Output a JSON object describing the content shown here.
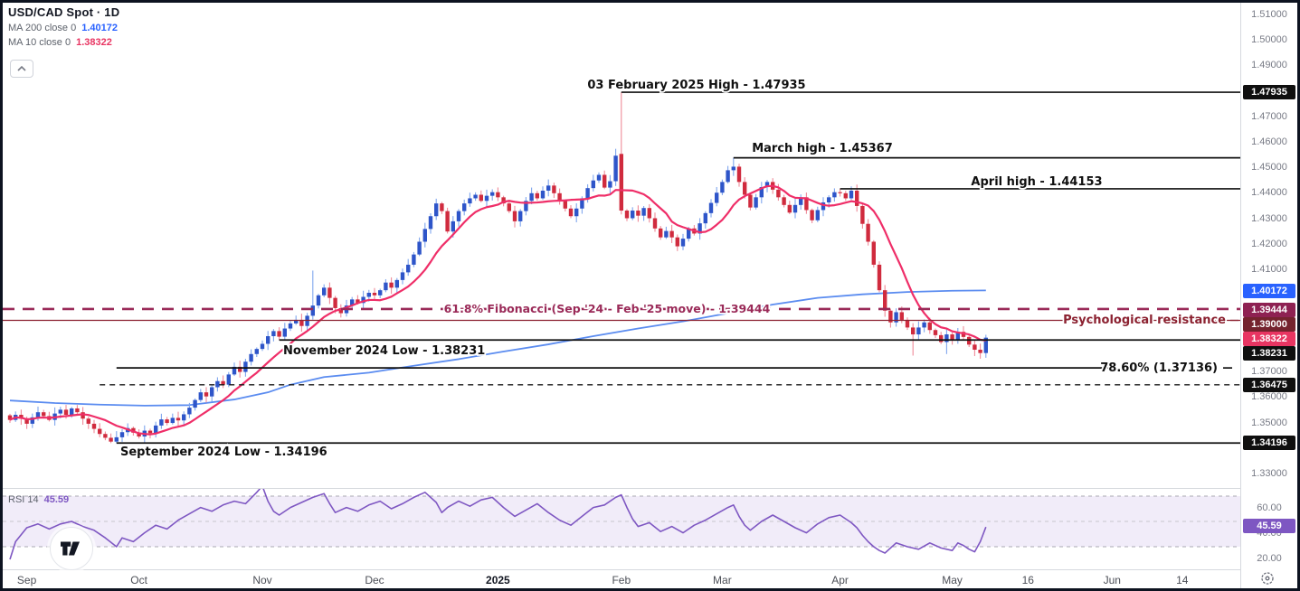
{
  "legend": {
    "symbol": "USD/CAD Spot · 1D",
    "ma200_label": "MA 200 close 0",
    "ma200_value": "1.40172",
    "ma200_color": "#2962ff",
    "ma10_label": "MA 10 close 0",
    "ma10_value": "1.38322",
    "ma10_color": "#e83562"
  },
  "rsi_legend": {
    "label": "RSI 14",
    "value": "45.59",
    "value_color": "#7e57c2"
  },
  "chart_data": {
    "type": "candlestick",
    "title": "USD/CAD Spot",
    "timeframe": "1D",
    "price_axis": {
      "min": 1.33,
      "max": 1.51,
      "ticks": [
        "1.51000",
        "1.50000",
        "1.49000",
        "1.47000",
        "1.46000",
        "1.45000",
        "1.44000",
        "1.43000",
        "1.42000",
        "1.41000",
        "1.37000",
        "1.36000",
        "1.35000",
        "1.33000"
      ],
      "badges": [
        {
          "text": "1.47935",
          "price": 1.47935,
          "bg": "#0f0f0f"
        },
        {
          "text": "1.40172",
          "price": 1.40172,
          "bg": "#2962ff"
        },
        {
          "text": "1.39444",
          "price": 1.39444,
          "bg": "#8e2152"
        },
        {
          "text": "1.39000",
          "price": 1.39,
          "bg": "#74232e"
        },
        {
          "text": "1.38322",
          "price": 1.38322,
          "bg": "#e83562"
        },
        {
          "text": "1.38231",
          "price": 1.38231,
          "bg": "#0f0f0f"
        },
        {
          "text": "1.36475",
          "price": 1.36475,
          "bg": "#0f0f0f"
        },
        {
          "text": "1.34196",
          "price": 1.34196,
          "bg": "#0f0f0f"
        }
      ]
    },
    "time_ticks": [
      {
        "label": "Sep",
        "i": 3
      },
      {
        "label": "Oct",
        "i": 23
      },
      {
        "label": "Nov",
        "i": 45
      },
      {
        "label": "Dec",
        "i": 65
      },
      {
        "label": "2025",
        "i": 87,
        "year": true
      },
      {
        "label": "Feb",
        "i": 109
      },
      {
        "label": "Mar",
        "i": 127
      },
      {
        "label": "Apr",
        "i": 148
      },
      {
        "label": "May",
        "i": 168
      },
      {
        "label": "16",
        "i": 181.5
      },
      {
        "label": "Jun",
        "i": 196.5
      },
      {
        "label": "14",
        "i": 209
      }
    ],
    "candles": {
      "first_open": 1.3528,
      "up_color": "#2e55c9",
      "up_wick": "#7fa6ee",
      "down_color": "#d02b3e",
      "down_wick": "#ef8b99",
      "closes": [
        1.351,
        1.353,
        1.3515,
        1.3495,
        1.352,
        1.354,
        1.3525,
        1.351,
        1.3535,
        1.355,
        1.353,
        1.3555,
        1.354,
        1.3515,
        1.3495,
        1.3475,
        1.3455,
        1.344,
        1.3425,
        1.3442,
        1.3462,
        1.3478,
        1.346,
        1.3445,
        1.3468,
        1.3458,
        1.3488,
        1.3512,
        1.3498,
        1.3518,
        1.3508,
        1.3532,
        1.3558,
        1.3588,
        1.3618,
        1.3602,
        1.3638,
        1.3662,
        1.3648,
        1.3688,
        1.3718,
        1.3698,
        1.3738,
        1.3768,
        1.3788,
        1.3808,
        1.3838,
        1.3858,
        1.3836,
        1.3868,
        1.3888,
        1.3902,
        1.3878,
        1.3918,
        1.3958,
        1.3998,
        1.4028,
        1.3988,
        1.3948,
        1.3928,
        1.3958,
        1.3982,
        1.3968,
        1.3992,
        1.4008,
        1.3998,
        1.4018,
        1.4048,
        1.4028,
        1.4058,
        1.4088,
        1.4118,
        1.4158,
        1.4208,
        1.4258,
        1.4308,
        1.4358,
        1.4328,
        1.4248,
        1.4288,
        1.4328,
        1.4358,
        1.4378,
        1.4392,
        1.4368,
        1.4388,
        1.4402,
        1.4382,
        1.4358,
        1.4328,
        1.4288,
        1.4328,
        1.4368,
        1.4398,
        1.4378,
        1.4408,
        1.4428,
        1.4398,
        1.4368,
        1.4338,
        1.4308,
        1.4338,
        1.4378,
        1.4418,
        1.4448,
        1.447,
        1.442,
        1.4445,
        1.4545,
        1.433,
        1.43,
        1.433,
        1.431,
        1.434,
        1.43,
        1.426,
        1.4225,
        1.425,
        1.4225,
        1.419,
        1.422,
        1.426,
        1.424,
        1.428,
        1.432,
        1.436,
        1.44,
        1.4442,
        1.4488,
        1.4502,
        1.4442,
        1.4392,
        1.4342,
        1.4382,
        1.4422,
        1.4442,
        1.4412,
        1.4382,
        1.4352,
        1.4322,
        1.4352,
        1.4382,
        1.4332,
        1.4292,
        1.4332,
        1.4362,
        1.4382,
        1.4402,
        1.4398,
        1.4378,
        1.4408,
        1.4348,
        1.4278,
        1.4208,
        1.4118,
        1.4018,
        1.3938,
        1.3892,
        1.3932,
        1.3902,
        1.3872,
        1.3845,
        1.3872,
        1.3892,
        1.3862,
        1.3842,
        1.3815,
        1.3845,
        1.3825,
        1.3855,
        1.3835,
        1.3805,
        1.3785,
        1.3772,
        1.38322
      ],
      "overrides": {
        "19": {
          "l": 1.34196
        },
        "48": {
          "l": 1.38231
        },
        "54": {
          "h": 1.4095
        },
        "108": {
          "h": 1.4572
        },
        "109": {
          "o": 1.4552,
          "h": 1.47935
        },
        "129": {
          "h": 1.45367
        },
        "148": {
          "h": 1.44153
        },
        "161": {
          "l": 1.3762
        },
        "167": {
          "l": 1.3768
        },
        "172": {
          "l": 1.376
        }
      }
    },
    "ma200": {
      "color": "#5b8cf0",
      "points": [
        [
          0,
          1.3586
        ],
        [
          8,
          1.3576
        ],
        [
          16,
          1.357
        ],
        [
          24,
          1.3566
        ],
        [
          32,
          1.3568
        ],
        [
          40,
          1.359
        ],
        [
          46,
          1.3618
        ],
        [
          50,
          1.3648
        ],
        [
          56,
          1.3678
        ],
        [
          64,
          1.3695
        ],
        [
          72,
          1.3722
        ],
        [
          80,
          1.3748
        ],
        [
          88,
          1.3778
        ],
        [
          96,
          1.3806
        ],
        [
          104,
          1.3838
        ],
        [
          112,
          1.3868
        ],
        [
          120,
          1.3896
        ],
        [
          128,
          1.3928
        ],
        [
          136,
          1.3962
        ],
        [
          144,
          1.3988
        ],
        [
          152,
          1.4002
        ],
        [
          160,
          1.4011
        ],
        [
          168,
          1.4016
        ],
        [
          174,
          1.40172
        ]
      ]
    },
    "ma10": {
      "color": "#ef2e68",
      "period": 10
    },
    "levels": [
      {
        "id": "feb_high",
        "label": "03 February 2025 High - 1.47935",
        "price": 1.47935,
        "from_i": 109,
        "style": "solid",
        "color": "#101010"
      },
      {
        "id": "mar_high",
        "label": "March high - 1.45367",
        "price": 1.45367,
        "from_i": 129,
        "style": "solid",
        "color": "#101010"
      },
      {
        "id": "apr_high",
        "label": "April high - 1.44153",
        "price": 1.44153,
        "from_i": 148,
        "style": "solid",
        "color": "#101010"
      },
      {
        "id": "fib618",
        "label": "61.8% Fibonacci (Sep '24 - Feb '25 move) - 1.39444",
        "price": 1.39444,
        "from_i": -1.3,
        "style": "dashed",
        "color": "#9a2a58"
      },
      {
        "id": "psych",
        "label": "Psychological resistance",
        "price": 1.39,
        "from_i": -1.3,
        "style": "solid",
        "color": "#8b2130"
      },
      {
        "id": "nov_low",
        "label": "November 2024 Low - 1.38231",
        "price": 1.38231,
        "from_i": 48,
        "style": "solid",
        "color": "#101010"
      },
      {
        "id": "fib786",
        "label": "78.60% (1.37136)",
        "price": 1.37136,
        "from_i": 19,
        "style": "solid",
        "color": "#101010"
      },
      {
        "id": "lvl_36475",
        "label": "",
        "price": 1.36475,
        "from_i": 16,
        "style": "dashed",
        "color": "#1a1a1a"
      },
      {
        "id": "sep_low",
        "label": "September 2024 Low - 1.34196",
        "price": 1.34196,
        "from_i": 19,
        "style": "solid",
        "color": "#101010"
      }
    ],
    "rsi": {
      "color": "#7e57c2",
      "band": [
        30,
        70
      ],
      "mid": 50,
      "ticks": [
        {
          "label": "60.00",
          "v": 60
        },
        {
          "label": "40.00",
          "v": 40
        },
        {
          "label": "20.00",
          "v": 20
        }
      ],
      "badge": {
        "text": "45.59",
        "v": 45.59,
        "bg": "#7e57c2"
      },
      "points": [
        [
          0,
          20
        ],
        [
          1,
          34
        ],
        [
          3,
          45
        ],
        [
          5,
          48
        ],
        [
          7,
          44
        ],
        [
          9,
          48
        ],
        [
          11,
          50
        ],
        [
          13,
          46
        ],
        [
          15,
          43
        ],
        [
          17,
          37
        ],
        [
          19,
          30
        ],
        [
          20,
          37
        ],
        [
          22,
          34
        ],
        [
          24,
          41
        ],
        [
          26,
          47
        ],
        [
          28,
          44
        ],
        [
          30,
          51
        ],
        [
          32,
          56
        ],
        [
          34,
          61
        ],
        [
          36,
          58
        ],
        [
          38,
          63
        ],
        [
          40,
          66
        ],
        [
          42,
          64
        ],
        [
          44,
          73
        ],
        [
          45,
          78
        ],
        [
          46,
          66
        ],
        [
          47,
          58
        ],
        [
          48,
          55
        ],
        [
          50,
          61
        ],
        [
          52,
          65
        ],
        [
          54,
          69
        ],
        [
          56,
          72
        ],
        [
          57,
          64
        ],
        [
          58,
          57
        ],
        [
          60,
          61
        ],
        [
          62,
          58
        ],
        [
          64,
          63
        ],
        [
          66,
          66
        ],
        [
          68,
          60
        ],
        [
          70,
          64
        ],
        [
          72,
          69
        ],
        [
          74,
          73
        ],
        [
          76,
          65
        ],
        [
          77,
          57
        ],
        [
          78,
          61
        ],
        [
          80,
          66
        ],
        [
          82,
          62
        ],
        [
          84,
          67
        ],
        [
          86,
          69
        ],
        [
          88,
          61
        ],
        [
          90,
          54
        ],
        [
          92,
          59
        ],
        [
          94,
          64
        ],
        [
          96,
          57
        ],
        [
          98,
          51
        ],
        [
          100,
          47
        ],
        [
          102,
          54
        ],
        [
          104,
          61
        ],
        [
          106,
          63
        ],
        [
          108,
          69
        ],
        [
          109,
          71
        ],
        [
          110,
          61
        ],
        [
          111,
          52
        ],
        [
          112,
          46
        ],
        [
          114,
          49
        ],
        [
          116,
          42
        ],
        [
          118,
          46
        ],
        [
          120,
          41
        ],
        [
          122,
          47
        ],
        [
          124,
          51
        ],
        [
          126,
          56
        ],
        [
          128,
          61
        ],
        [
          129,
          63
        ],
        [
          130,
          54
        ],
        [
          131,
          47
        ],
        [
          132,
          43
        ],
        [
          134,
          50
        ],
        [
          136,
          55
        ],
        [
          138,
          50
        ],
        [
          140,
          45
        ],
        [
          142,
          41
        ],
        [
          144,
          48
        ],
        [
          146,
          53
        ],
        [
          148,
          55
        ],
        [
          150,
          49
        ],
        [
          151,
          45
        ],
        [
          152,
          39
        ],
        [
          153,
          34
        ],
        [
          154,
          30
        ],
        [
          155,
          27
        ],
        [
          156,
          25
        ],
        [
          158,
          33
        ],
        [
          160,
          30
        ],
        [
          162,
          28
        ],
        [
          164,
          33
        ],
        [
          166,
          29
        ],
        [
          168,
          27
        ],
        [
          169,
          33
        ],
        [
          170,
          31
        ],
        [
          171,
          28
        ],
        [
          172,
          26
        ],
        [
          173,
          34
        ],
        [
          174,
          45.59
        ]
      ]
    }
  }
}
